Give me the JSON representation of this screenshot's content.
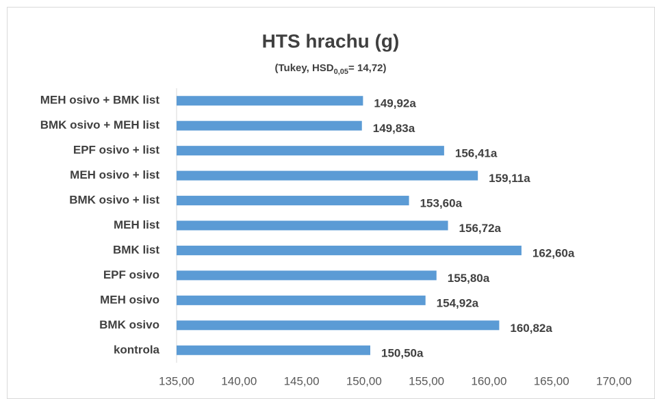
{
  "chart_data": {
    "type": "hbar",
    "title": "HTS hrachu (g)",
    "subtitle": [
      "(Tukey, HSD",
      "0,05",
      "= 14,72)"
    ],
    "categories": [
      "MEH osivo + BMK list",
      "BMK osivo + MEH list",
      "EPF osivo + list",
      "MEH osivo + list",
      "BMK osivo + list",
      "MEH list",
      "BMK list",
      "EPF osivo",
      "MEH osivo",
      "BMK osivo",
      "kontrola"
    ],
    "values": [
      149.92,
      149.83,
      156.41,
      159.11,
      153.6,
      156.72,
      162.6,
      155.8,
      154.92,
      160.82,
      150.5
    ],
    "value_labels": [
      "149,92a",
      "149,83a",
      "156,41a",
      "159,11a",
      "153,60a",
      "156,72a",
      "162,60a",
      "155,80a",
      "154,92a",
      "160,82a",
      "150,50a"
    ],
    "color": "#5b9bd5",
    "xlim": [
      135,
      170
    ],
    "xticks": [
      {
        "value": 135,
        "label": "135,00"
      },
      {
        "value": 140,
        "label": "140,00"
      },
      {
        "value": 145,
        "label": "145,00"
      },
      {
        "value": 150,
        "label": "150,00"
      },
      {
        "value": 155,
        "label": "155,00"
      },
      {
        "value": 160,
        "label": "160,00"
      },
      {
        "value": 165,
        "label": "165,00"
      },
      {
        "value": 170,
        "label": "170,00"
      }
    ],
    "grid": false
  }
}
